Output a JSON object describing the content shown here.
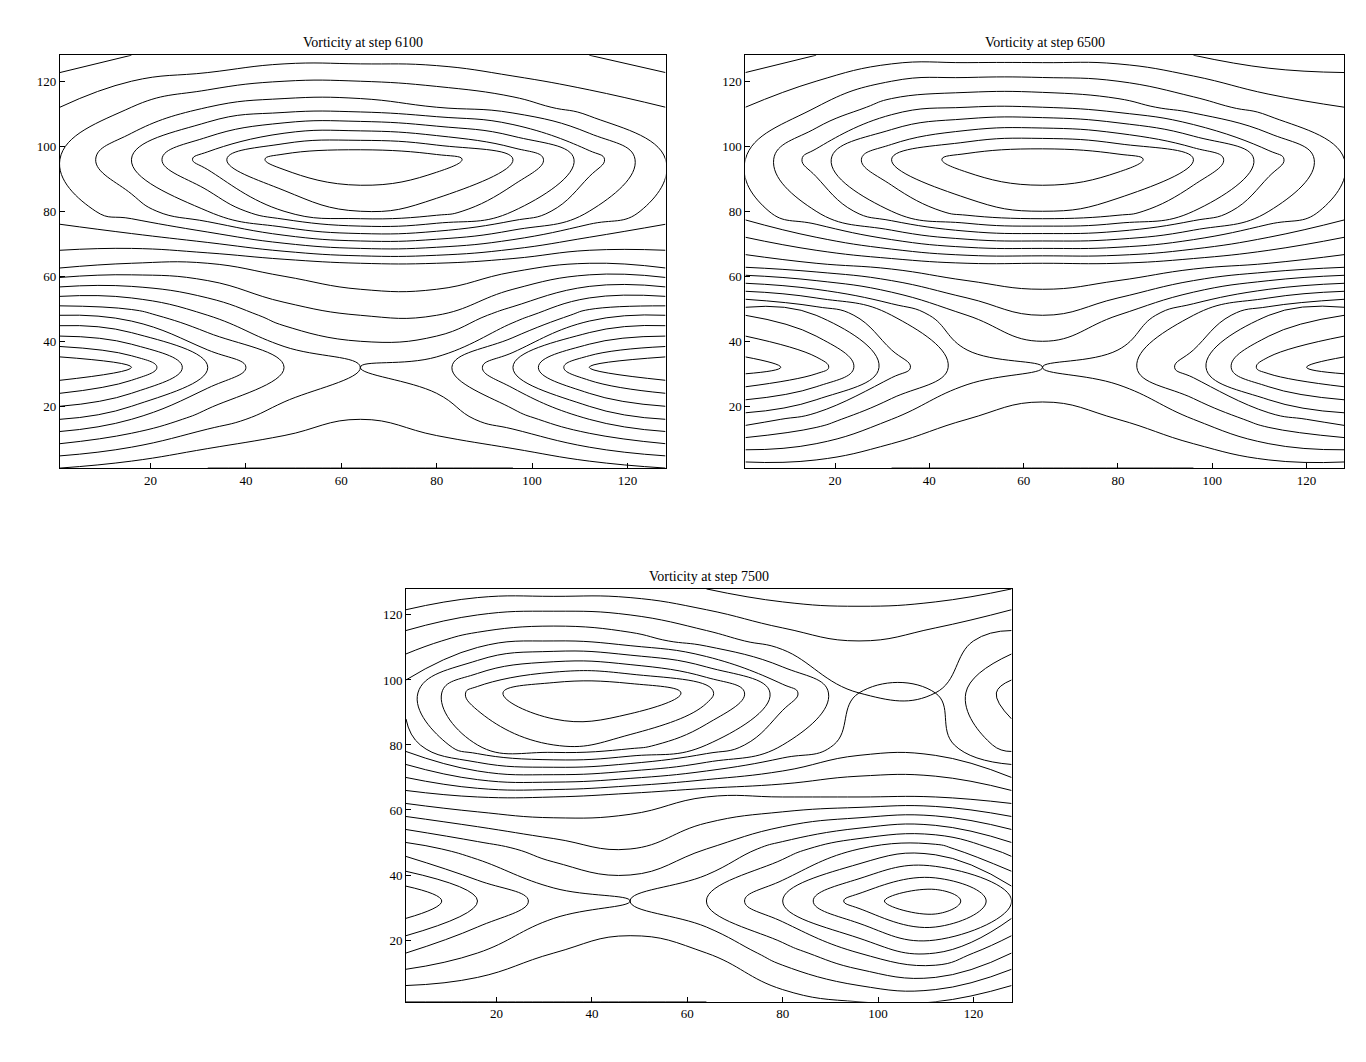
{
  "chart_data": [
    {
      "type": "contour",
      "title": "Vorticity at step 6100",
      "color": "#000000",
      "x": [
        1,
        16,
        32,
        48,
        64,
        80,
        96,
        112,
        128
      ],
      "y": [
        1,
        16,
        32,
        48,
        64,
        80,
        96,
        112,
        128
      ],
      "z": [
        [
          -0.2,
          -0.15,
          -0.1,
          -0.1,
          -0.1,
          -0.1,
          -0.1,
          -0.15,
          -0.2
        ],
        [
          -0.6,
          -0.5,
          -0.35,
          -0.25,
          -0.2,
          -0.25,
          -0.35,
          -0.5,
          -0.6
        ],
        [
          -1.0,
          -0.9,
          -0.6,
          -0.4,
          -0.3,
          -0.35,
          -0.6,
          -0.9,
          -1.0
        ],
        [
          -0.5,
          -0.45,
          -0.3,
          -0.15,
          -0.1,
          -0.1,
          -0.25,
          -0.45,
          -0.5
        ],
        [
          0.05,
          0,
          0,
          0.05,
          0.1,
          0.1,
          0.05,
          0,
          0.05
        ],
        [
          0.25,
          0.35,
          0.5,
          0.7,
          0.8,
          0.75,
          0.6,
          0.4,
          0.25
        ],
        [
          0.3,
          0.5,
          0.75,
          0.95,
          1.0,
          0.95,
          0.8,
          0.55,
          0.3
        ],
        [
          0.2,
          0.3,
          0.4,
          0.45,
          0.45,
          0.4,
          0.35,
          0.25,
          0.2
        ],
        [
          0.05,
          0.1,
          0.1,
          0.15,
          0.15,
          0.15,
          0.1,
          0.1,
          0.05
        ]
      ],
      "xlim": [
        1,
        128
      ],
      "ylim": [
        1,
        128
      ],
      "xticks": [
        20,
        40,
        60,
        80,
        100,
        120
      ],
      "yticks": [
        20,
        40,
        60,
        80,
        100,
        120
      ]
    },
    {
      "type": "contour",
      "title": "Vorticity at step 6500",
      "color": "#000000",
      "x": [
        1,
        16,
        32,
        48,
        64,
        80,
        96,
        112,
        128
      ],
      "y": [
        1,
        16,
        32,
        48,
        64,
        80,
        96,
        112,
        128
      ],
      "z": [
        [
          -0.15,
          -0.15,
          -0.1,
          -0.1,
          -0.1,
          -0.1,
          -0.1,
          -0.15,
          -0.15
        ],
        [
          -0.55,
          -0.45,
          -0.3,
          -0.2,
          -0.15,
          -0.2,
          -0.3,
          -0.45,
          -0.55
        ],
        [
          -0.95,
          -0.85,
          -0.55,
          -0.35,
          -0.3,
          -0.35,
          -0.55,
          -0.85,
          -0.95
        ],
        [
          -0.7,
          -0.6,
          -0.4,
          -0.2,
          -0.1,
          -0.2,
          -0.4,
          -0.6,
          -0.7
        ],
        [
          -0.05,
          0,
          0.05,
          0.1,
          0.1,
          0.1,
          0.05,
          0,
          -0.05
        ],
        [
          0.25,
          0.4,
          0.6,
          0.75,
          0.8,
          0.75,
          0.6,
          0.4,
          0.25
        ],
        [
          0.3,
          0.55,
          0.8,
          0.95,
          1.0,
          0.95,
          0.8,
          0.55,
          0.3
        ],
        [
          0.2,
          0.3,
          0.45,
          0.5,
          0.5,
          0.45,
          0.35,
          0.25,
          0.2
        ],
        [
          0.05,
          0.1,
          0.15,
          0.15,
          0.15,
          0.15,
          0.1,
          0.05,
          0.05
        ]
      ],
      "xlim": [
        1,
        128
      ],
      "ylim": [
        1,
        128
      ],
      "xticks": [
        20,
        40,
        60,
        80,
        100,
        120
      ],
      "yticks": [
        20,
        40,
        60,
        80,
        100,
        120
      ]
    },
    {
      "type": "contour",
      "title": "Vorticity at step 7500",
      "color": "#000000",
      "x": [
        1,
        16,
        32,
        48,
        64,
        80,
        96,
        112,
        128
      ],
      "y": [
        1,
        16,
        32,
        48,
        64,
        80,
        96,
        112,
        128
      ],
      "z": [
        [
          -0.1,
          -0.1,
          -0.1,
          -0.1,
          -0.1,
          -0.15,
          -0.2,
          -0.2,
          -0.1
        ],
        [
          -0.4,
          -0.3,
          -0.2,
          -0.15,
          -0.2,
          -0.35,
          -0.5,
          -0.6,
          -0.4
        ],
        [
          -0.7,
          -0.5,
          -0.35,
          -0.3,
          -0.4,
          -0.6,
          -0.85,
          -1.0,
          -0.7
        ],
        [
          -0.35,
          -0.25,
          -0.15,
          -0.1,
          -0.2,
          -0.35,
          -0.5,
          -0.55,
          -0.35
        ],
        [
          0.05,
          0.1,
          0.1,
          0.05,
          0,
          0,
          0,
          0,
          0.05
        ],
        [
          0.45,
          0.7,
          0.8,
          0.75,
          0.6,
          0.4,
          0.25,
          0.25,
          0.45
        ],
        [
          0.55,
          0.85,
          1.0,
          1.0,
          0.85,
          0.55,
          0.3,
          0.3,
          0.55
        ],
        [
          0.35,
          0.45,
          0.5,
          0.45,
          0.35,
          0.25,
          0.2,
          0.25,
          0.35
        ],
        [
          0.1,
          0.15,
          0.15,
          0.15,
          0.1,
          0.05,
          0.05,
          0.05,
          0.1
        ]
      ],
      "xlim": [
        1,
        128
      ],
      "ylim": [
        1,
        128
      ],
      "xticks": [
        20,
        40,
        60,
        80,
        100,
        120
      ],
      "yticks": [
        20,
        40,
        60,
        80,
        100,
        120
      ]
    }
  ]
}
